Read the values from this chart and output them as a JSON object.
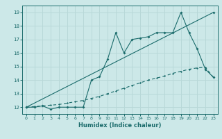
{
  "xlabel": "Humidex (Indice chaleur)",
  "ylabel": "",
  "bg_color": "#cce8e8",
  "grid_color": "#b8d8d8",
  "line_color": "#1a6b6b",
  "xlim": [
    -0.5,
    23.5
  ],
  "ylim": [
    11.5,
    19.5
  ],
  "xticks": [
    0,
    1,
    2,
    3,
    4,
    5,
    6,
    7,
    8,
    9,
    10,
    11,
    12,
    13,
    14,
    15,
    16,
    17,
    18,
    19,
    20,
    21,
    22,
    23
  ],
  "yticks": [
    12,
    13,
    14,
    15,
    16,
    17,
    18,
    19
  ],
  "line1_x": [
    0,
    1,
    2,
    3,
    4,
    5,
    6,
    7,
    8,
    9,
    10,
    11,
    12,
    13,
    14,
    15,
    16,
    17,
    18,
    19,
    20,
    21,
    22,
    23
  ],
  "line1_y": [
    12.0,
    12.0,
    12.1,
    11.85,
    12.0,
    12.0,
    12.0,
    12.0,
    14.0,
    14.25,
    15.55,
    17.5,
    16.0,
    17.0,
    17.1,
    17.2,
    17.5,
    17.5,
    17.5,
    19.0,
    17.5,
    16.3,
    14.8,
    14.2
  ],
  "line2_x": [
    0,
    23
  ],
  "line2_y": [
    12.0,
    19.0
  ],
  "line3_x": [
    0,
    1,
    2,
    3,
    4,
    5,
    6,
    7,
    8,
    9,
    10,
    11,
    12,
    13,
    14,
    15,
    16,
    17,
    18,
    19,
    20,
    21,
    22,
    23
  ],
  "line3_y": [
    12.0,
    12.05,
    12.1,
    12.15,
    12.2,
    12.3,
    12.4,
    12.5,
    12.65,
    12.8,
    13.0,
    13.2,
    13.4,
    13.6,
    13.8,
    14.0,
    14.15,
    14.3,
    14.5,
    14.65,
    14.8,
    14.9,
    14.95,
    14.2
  ]
}
